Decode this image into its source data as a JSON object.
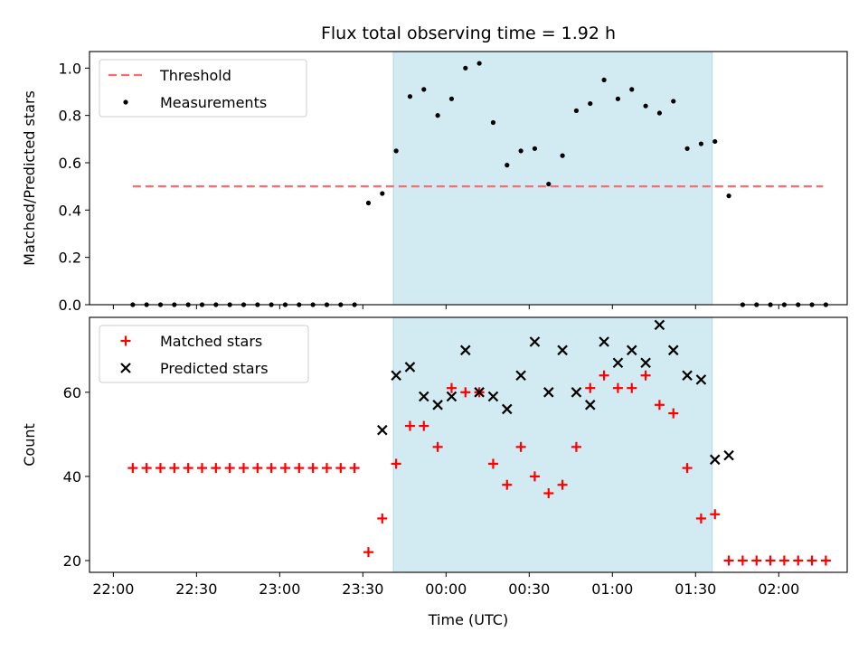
{
  "chart_data": {
    "type": "scatter",
    "title": "Flux total observing time = 1.92 h",
    "xlabel": "Time (UTC)",
    "x_unit": "minutes after 22:00 UTC",
    "xlim": [
      -8.6,
      264.7
    ],
    "xticks": [
      0,
      30,
      60,
      90,
      120,
      150,
      180,
      210,
      240
    ],
    "xtick_labels": [
      "22:00",
      "22:30",
      "23:00",
      "23:30",
      "00:00",
      "00:30",
      "01:00",
      "01:30",
      "02:00"
    ],
    "shaded_window": [
      101,
      216
    ],
    "shade_color": "#add8e6",
    "panels": [
      {
        "ylabel": "Matched/Predicted stars",
        "ylim": [
          0,
          1.07
        ],
        "yticks": [
          0,
          0.2,
          0.4,
          0.6,
          0.8,
          1.0
        ],
        "ytick_labels": [
          "0.0",
          "0.2",
          "0.4",
          "0.6",
          "0.8",
          "1.0"
        ],
        "show_x_tick_labels": false,
        "legend_position": "upper-left",
        "series": [
          {
            "name": "Threshold",
            "kind": "dashed-line",
            "color": "#ff6b6b",
            "x": [
              7,
              256
            ],
            "y": [
              0.5,
              0.5
            ]
          },
          {
            "name": "Measurements",
            "kind": "dot",
            "color": "#000000",
            "x": [
              7,
              12,
              17,
              22,
              27,
              32,
              37,
              42,
              47,
              52,
              57,
              62,
              67,
              72,
              77,
              82,
              87,
              92,
              97,
              102,
              107,
              112,
              117,
              122,
              127,
              132,
              137,
              142,
              147,
              152,
              157,
              162,
              167,
              172,
              177,
              182,
              187,
              192,
              197,
              202,
              207,
              212,
              217,
              222,
              227,
              232,
              237,
              242,
              247,
              252,
              257
            ],
            "y": [
              0,
              0,
              0,
              0,
              0,
              0,
              0,
              0,
              0,
              0,
              0,
              0,
              0,
              0,
              0,
              0,
              0,
              0.43,
              0.47,
              0.65,
              0.88,
              0.91,
              0.8,
              0.87,
              1.0,
              1.02,
              0.77,
              0.59,
              0.65,
              0.66,
              0.51,
              0.63,
              0.82,
              0.85,
              0.95,
              0.87,
              0.91,
              0.84,
              0.81,
              0.86,
              0.66,
              0.68,
              0.69,
              0.46,
              0,
              0,
              0,
              0,
              0,
              0,
              0
            ]
          }
        ]
      },
      {
        "ylabel": "Count",
        "ylim": [
          17.2,
          77.8
        ],
        "yticks": [
          20,
          40,
          60
        ],
        "ytick_labels": [
          "20",
          "40",
          "60"
        ],
        "show_x_tick_labels": true,
        "legend_position": "upper-left",
        "series": [
          {
            "name": "Matched stars",
            "kind": "plus",
            "color": "#ff0000",
            "x": [
              7,
              12,
              17,
              22,
              27,
              32,
              37,
              42,
              47,
              52,
              57,
              62,
              67,
              72,
              77,
              82,
              87,
              92,
              97,
              102,
              107,
              112,
              117,
              122,
              127,
              132,
              137,
              142,
              147,
              152,
              157,
              162,
              167,
              172,
              177,
              182,
              187,
              192,
              197,
              202,
              207,
              212,
              217,
              222,
              227,
              232,
              237,
              242,
              247,
              252,
              257
            ],
            "y": [
              42,
              42,
              42,
              42,
              42,
              42,
              42,
              42,
              42,
              42,
              42,
              42,
              42,
              42,
              42,
              42,
              42,
              22,
              30,
              43,
              52,
              52,
              47,
              61,
              60,
              60,
              43,
              38,
              47,
              40,
              36,
              38,
              47,
              61,
              64,
              61,
              61,
              64,
              57,
              55,
              42,
              30,
              31,
              20,
              20,
              20,
              20,
              20,
              20,
              20,
              20
            ]
          },
          {
            "name": "Predicted stars",
            "kind": "x",
            "color": "#000000",
            "x": [
              97,
              102,
              107,
              112,
              117,
              122,
              127,
              132,
              137,
              142,
              147,
              152,
              157,
              162,
              167,
              172,
              177,
              182,
              187,
              192,
              197,
              202,
              207,
              212,
              217,
              222
            ],
            "y": [
              51,
              64,
              66,
              59,
              57,
              59,
              70,
              60,
              59,
              56,
              64,
              72,
              60,
              70,
              60,
              57,
              72,
              67,
              70,
              67,
              76,
              70,
              64,
              63,
              44,
              45
            ]
          }
        ]
      }
    ]
  }
}
